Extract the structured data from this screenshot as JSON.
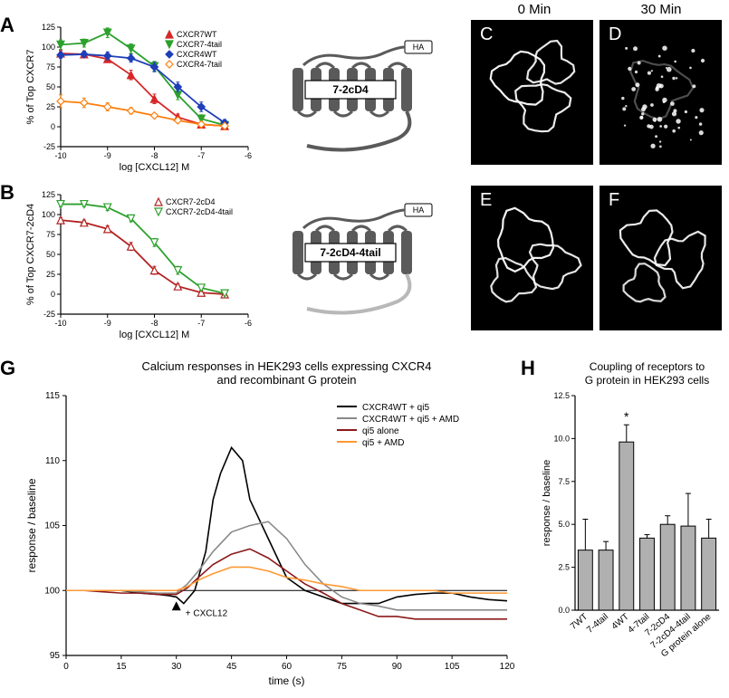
{
  "headers": {
    "col0": "0 Min",
    "col30": "30 Min"
  },
  "panelA": {
    "label": "A",
    "type": "scatter-line",
    "xlabel": "log [CXCL12] M",
    "ylabel": "% of Top CXCR7",
    "xlim": [
      -10,
      -6
    ],
    "ylim": [
      -25,
      125
    ],
    "xtick_positions": [
      -10,
      -9,
      -8,
      -7,
      -6
    ],
    "ytick_positions": [
      -25,
      0,
      25,
      50,
      75,
      100,
      125
    ],
    "background_color": "#ffffff",
    "grid_color": "#ffffff",
    "axis_color": "#000000",
    "series": [
      {
        "name": "CXCR7WT",
        "marker": "triangle-up-filled",
        "color": "#d62728",
        "line_width": 1.8,
        "x": [
          -10,
          -9.5,
          -9,
          -8.5,
          -8,
          -7.5,
          -7,
          -6.5
        ],
        "y": [
          92,
          91,
          85,
          65,
          35,
          12,
          3,
          1
        ],
        "err": [
          4,
          4,
          4,
          6,
          6,
          4,
          2,
          2
        ]
      },
      {
        "name": "CXCR7-4tail",
        "marker": "triangle-down-filled",
        "color": "#2ca02c",
        "line_width": 1.8,
        "x": [
          -10,
          -9.5,
          -9,
          -8.5,
          -8,
          -7.5,
          -7,
          -6.5
        ],
        "y": [
          103,
          105,
          118,
          98,
          76,
          40,
          10,
          2
        ],
        "err": [
          6,
          5,
          6,
          6,
          6,
          6,
          5,
          3
        ]
      },
      {
        "name": "CXCR4WT",
        "marker": "diamond-filled",
        "color": "#1f3fb8",
        "line_width": 1.8,
        "x": [
          -10,
          -9.5,
          -9,
          -8.5,
          -8,
          -7.5,
          -7,
          -6.5
        ],
        "y": [
          90,
          91,
          89,
          86,
          75,
          50,
          25,
          5
        ],
        "err": [
          4,
          4,
          5,
          5,
          6,
          6,
          6,
          4
        ]
      },
      {
        "name": "CXCR4-7tail",
        "marker": "diamond-open",
        "color": "#ff7f0e",
        "line_width": 1.8,
        "x": [
          -10,
          -9.5,
          -9,
          -8.5,
          -8,
          -7.5,
          -7,
          -6.5
        ],
        "y": [
          32,
          30,
          25,
          20,
          14,
          8,
          3,
          1
        ],
        "err": [
          8,
          6,
          5,
          4,
          3,
          3,
          2,
          2
        ]
      }
    ]
  },
  "panelB": {
    "label": "B",
    "type": "scatter-line",
    "xlabel": "log [CXCL12] M",
    "ylabel": "% of Top CXCR7-2cD4",
    "xlim": [
      -10,
      -6
    ],
    "ylim": [
      -25,
      125
    ],
    "xtick_positions": [
      -10,
      -9,
      -8,
      -7,
      -6
    ],
    "ytick_positions": [
      -25,
      0,
      25,
      50,
      75,
      100,
      125
    ],
    "background_color": "#ffffff",
    "axis_color": "#000000",
    "series": [
      {
        "name": "CXCR7-2cD4",
        "marker": "triangle-up-open",
        "color": "#b22222",
        "line_width": 1.8,
        "x": [
          -10,
          -9.5,
          -9,
          -8.5,
          -8,
          -7.5,
          -7,
          -6.5
        ],
        "y": [
          93,
          90,
          82,
          60,
          30,
          10,
          2,
          0
        ],
        "err": [
          3,
          3,
          4,
          5,
          5,
          3,
          2,
          1
        ]
      },
      {
        "name": "CXCR7-2cD4-4tail",
        "marker": "triangle-down-open",
        "color": "#2ca02c",
        "line_width": 1.8,
        "x": [
          -10,
          -9.5,
          -9,
          -8.5,
          -8,
          -7.5,
          -7,
          -6.5
        ],
        "y": [
          113,
          113,
          109,
          95,
          65,
          30,
          8,
          1
        ],
        "err": [
          3,
          3,
          4,
          4,
          5,
          5,
          3,
          2
        ]
      }
    ]
  },
  "diagrams": {
    "ha_tag": "HA",
    "d1": "7-2cD4",
    "d2": "7-2cD4-4tail",
    "body_color": "#5a5a5a",
    "tail_fade": "#b8b8b8",
    "label_bg": "#ffffff",
    "label_border": "#000000",
    "line_color": "#000000"
  },
  "images": {
    "C": "C",
    "D": "D",
    "E": "E",
    "F": "F"
  },
  "panelG": {
    "label": "G",
    "type": "line",
    "title": "Calcium responses in HEK293 cells expressing CXCR4\nand recombinant G protein",
    "xlabel": "time (s)",
    "ylabel": "response / baseline",
    "xlim": [
      0,
      120
    ],
    "ylim": [
      95,
      115
    ],
    "xtick_positions": [
      0,
      15,
      30,
      45,
      60,
      75,
      90,
      105,
      120
    ],
    "ytick_positions": [
      95,
      100,
      105,
      110,
      115
    ],
    "background_color": "#ffffff",
    "axis_color": "#000000",
    "baseline_color": "#000000",
    "marker_label": "+ CXCL12",
    "marker_x": 30,
    "series": [
      {
        "name": "CXCR4WT + qi5",
        "color": "#000000",
        "line_width": 1.6,
        "x": [
          0,
          5,
          10,
          15,
          20,
          25,
          28,
          30,
          32,
          35,
          38,
          40,
          42,
          45,
          48,
          50,
          55,
          60,
          65,
          70,
          75,
          80,
          85,
          90,
          95,
          100,
          105,
          110,
          115,
          120
        ],
        "y": [
          100,
          100,
          100,
          100,
          99.8,
          99.7,
          99.6,
          99.5,
          99,
          100,
          103,
          107,
          109,
          111,
          110,
          107,
          104,
          101,
          100,
          99.5,
          99,
          99,
          99,
          99.5,
          99.7,
          99.8,
          99.8,
          99.5,
          99.3,
          99.2
        ]
      },
      {
        "name": "CXCR4WT + qi5 + AMD",
        "color": "#8a8a8a",
        "line_width": 1.6,
        "x": [
          0,
          5,
          10,
          15,
          20,
          25,
          30,
          33,
          36,
          40,
          45,
          50,
          55,
          60,
          65,
          70,
          75,
          80,
          85,
          90,
          95,
          100,
          105,
          110,
          115,
          120
        ],
        "y": [
          100,
          100,
          100,
          100,
          99.9,
          99.8,
          99.8,
          100.5,
          101.5,
          103,
          104.5,
          105,
          105.3,
          104,
          102,
          100.5,
          99.5,
          99,
          98.8,
          98.5,
          98.5,
          98.5,
          98.5,
          98.5,
          98.5,
          98.5
        ]
      },
      {
        "name": "qi5 alone",
        "color": "#8b1a1a",
        "line_width": 1.6,
        "x": [
          0,
          5,
          10,
          15,
          20,
          25,
          30,
          33,
          36,
          40,
          45,
          50,
          55,
          60,
          65,
          70,
          75,
          80,
          85,
          90,
          95,
          100,
          105,
          110,
          115,
          120
        ],
        "y": [
          100,
          100,
          99.9,
          99.8,
          99.8,
          99.7,
          99.7,
          100.2,
          101,
          102,
          102.8,
          103.2,
          102.5,
          101.5,
          100.5,
          99.8,
          99,
          98.5,
          98,
          98,
          97.8,
          97.8,
          97.8,
          97.8,
          97.8,
          97.8
        ]
      },
      {
        "name": "qi5 + AMD",
        "color": "#ff9933",
        "line_width": 1.6,
        "x": [
          0,
          5,
          10,
          15,
          20,
          25,
          30,
          33,
          36,
          40,
          45,
          50,
          55,
          60,
          65,
          70,
          75,
          80,
          85,
          90,
          95,
          100,
          105,
          110,
          115,
          120
        ],
        "y": [
          100,
          100,
          100,
          100,
          100,
          100,
          100,
          100.3,
          100.8,
          101.3,
          101.8,
          101.8,
          101.5,
          101,
          100.8,
          100.5,
          100.3,
          100,
          100,
          100,
          100,
          100,
          99.8,
          99.8,
          99.8,
          99.8
        ]
      }
    ]
  },
  "panelH": {
    "label": "H",
    "type": "bar",
    "title": "Coupling of receptors to\nG protein in HEK293 cells",
    "ylabel": "response / baseline",
    "ylim": [
      0,
      12.5
    ],
    "ytick_positions": [
      0,
      2.5,
      5.0,
      7.5,
      10.0,
      12.5
    ],
    "bar_color": "#b0b0b0",
    "bar_border": "#000000",
    "error_color": "#000000",
    "categories": [
      "7WT",
      "7-4tail",
      "4WT",
      "4-7tail",
      "7-2cD4",
      "7-2cD4-4tail",
      "G protein alone"
    ],
    "values": [
      3.5,
      3.5,
      9.8,
      4.2,
      5.0,
      4.9,
      4.2
    ],
    "errors": [
      1.8,
      0.5,
      1.0,
      0.2,
      0.5,
      1.9,
      1.1
    ],
    "sig_marks": {
      "4WT": "*"
    }
  }
}
